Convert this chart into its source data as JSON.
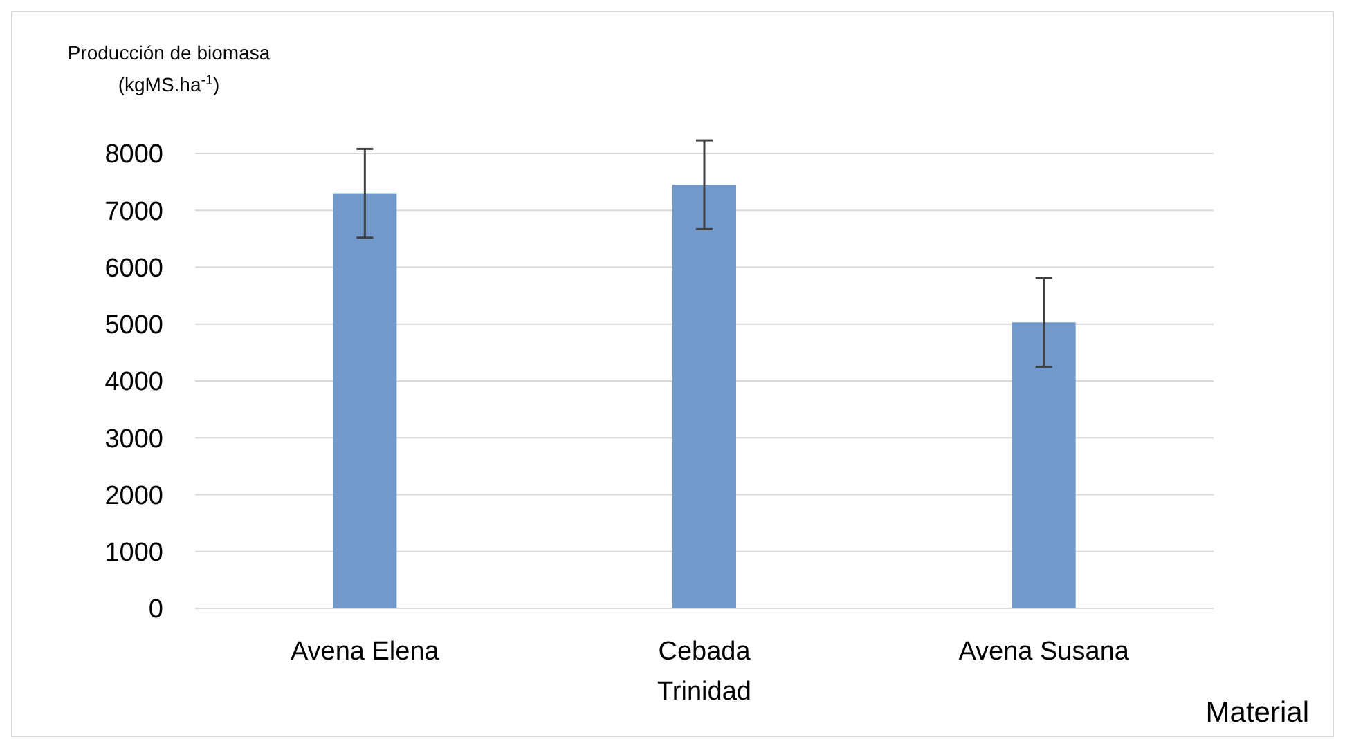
{
  "chart_data": {
    "type": "bar",
    "ylabel": "Producción de biomasa (kgMS.ha$^{-1}$)",
    "xlabel": "Material",
    "categories": [
      "Avena Elena",
      "Cebada Trinidad",
      "Avena Susana"
    ],
    "values": [
      7300,
      7450,
      5030
    ],
    "errors": [
      780,
      780,
      780
    ],
    "color": "#7199cc",
    "ylim": [
      0,
      8000
    ],
    "yticks": [
      0,
      1000,
      2000,
      3000,
      4000,
      5000,
      6000,
      7000,
      8000
    ],
    "grid": "y"
  }
}
